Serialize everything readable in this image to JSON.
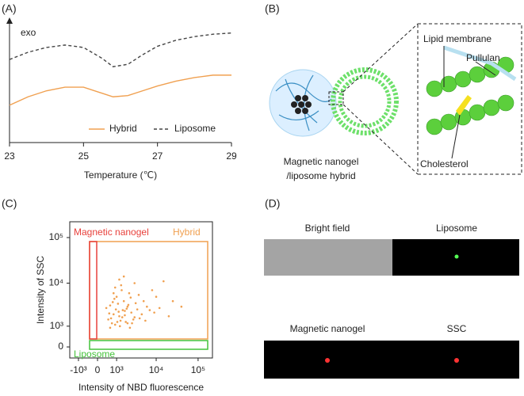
{
  "panels": [
    "(A)",
    "(B)",
    "(C)",
    "(D)"
  ],
  "chart_data": [
    {
      "type": "line",
      "ylabel": "exo",
      "xlabel": "Temperature (℃)",
      "x": [
        23,
        23.5,
        24,
        24.5,
        25,
        25.5,
        25.8,
        26.2,
        26.6,
        27,
        27.5,
        28,
        28.5,
        29
      ],
      "xlim": [
        23,
        29
      ],
      "xticks": [
        23,
        25,
        27,
        29
      ],
      "ylim": [
        0,
        10
      ],
      "legend": "lower right",
      "series": [
        {
          "name": "Hybrid",
          "color": "#f0a050",
          "dash": false,
          "values": [
            3.1,
            3.8,
            4.3,
            4.6,
            4.6,
            4.1,
            3.8,
            3.9,
            4.3,
            4.7,
            5.1,
            5.4,
            5.6,
            5.6
          ]
        },
        {
          "name": "Liposome",
          "color": "#444444",
          "dash": true,
          "values": [
            6.9,
            7.5,
            7.9,
            8.1,
            7.9,
            7.0,
            6.3,
            6.5,
            7.3,
            8.0,
            8.5,
            8.8,
            9.0,
            9.1
          ]
        }
      ]
    },
    {
      "type": "scatter",
      "xlabel": "Intensity of NBD fluorescence",
      "ylabel": "Intensity of SSC",
      "xscale": "biexponential",
      "yscale": "biexponential",
      "color": "#f0a050",
      "xlim": [
        -1750,
        220000
      ],
      "ylim": [
        -470,
        222000
      ],
      "xticks": [
        {
          "value": -1000,
          "label": "-10³"
        },
        0,
        {
          "value": 1000,
          "label": "10³"
        },
        {
          "value": 10000,
          "label": "10⁴"
        },
        {
          "value": 100000,
          "label": "10⁵"
        }
      ],
      "yticks": [
        0,
        {
          "value": 1000,
          "label": "10³"
        },
        {
          "value": 10000,
          "label": "10⁴"
        },
        {
          "value": 100000,
          "label": "10⁵"
        }
      ],
      "gates": [
        {
          "name": "Magnetic nanogel",
          "color": "#e8413c"
        },
        {
          "name": "Hybrid",
          "color": "#f0a050"
        },
        {
          "name": "Liposome",
          "color": "#44c23a"
        }
      ],
      "x": [
        500,
        800,
        1200,
        1500,
        2000,
        700,
        900,
        1100,
        1600,
        2500,
        3000,
        400,
        600,
        1000,
        1300,
        1800,
        2200,
        3500,
        4500,
        600,
        850,
        1150,
        1400,
        1700,
        2100,
        2800,
        5000,
        7000,
        900,
        1250,
        1900,
        2400,
        3200,
        4000,
        6000,
        9000,
        12000,
        800,
        1050,
        1350,
        2600,
        3800,
        550,
        750,
        1450,
        2000,
        15000,
        25000,
        40000,
        8000,
        5500,
        3000,
        1700,
        650,
        950,
        1200,
        20000,
        10000,
        2300,
        1600
      ],
      "values": [
        1500,
        2000,
        1800,
        2500,
        3000,
        1200,
        1100,
        3500,
        4000,
        2200,
        1700,
        2800,
        3200,
        5000,
        1400,
        1300,
        6000,
        2600,
        2000,
        900,
        4500,
        2300,
        7000,
        1900,
        3300,
        1500,
        4000,
        2500,
        8000,
        1000,
        2700,
        4800,
        3600,
        1600,
        3000,
        2200,
        2800,
        6000,
        1300,
        9000,
        1200,
        5500,
        2100,
        3800,
        1700,
        1200,
        11000,
        4000,
        3000,
        7000,
        1400,
        10000,
        2400,
        1600,
        2600,
        12000,
        1800,
        5000,
        900,
        14000
      ]
    }
  ],
  "diagram": {
    "labels": [
      "Lipid membrane",
      "Pullulan",
      "Cholesterol"
    ],
    "caption": [
      "Magnetic nanogel",
      "/liposome hybrid"
    ]
  },
  "images": {
    "labels": [
      "Bright field",
      "Liposome",
      "Magnetic nanogel",
      "SSC"
    ]
  }
}
